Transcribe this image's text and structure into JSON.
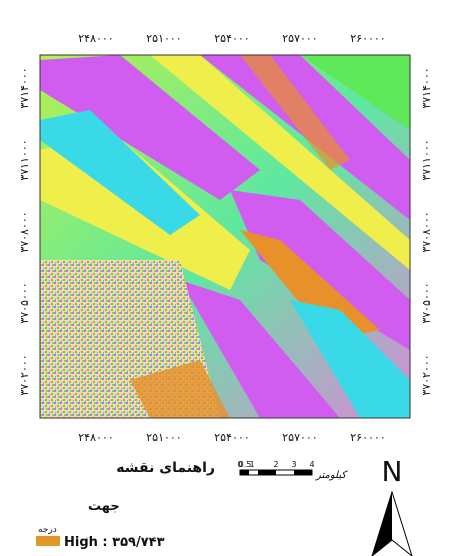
{
  "map": {
    "x_labels": [
      "۲۴۸۰۰۰",
      "۲۵۱۰۰۰",
      "۲۵۴۰۰۰",
      "۲۵۷۰۰۰",
      "۲۶۰۰۰۰"
    ],
    "y_labels": [
      "۳۷۱۴۰۰۰",
      "۳۷۱۱۰۰۰",
      "۳۷۰۸۰۰۰",
      "۳۷۰۵۰۰۰",
      "۳۷۰۲۰۰۰"
    ]
  },
  "legend": {
    "title": "راهنمای نقشه",
    "layer": "جهت",
    "unit": "درجه",
    "high": "High : ۳۵۹/۷۴۳"
  },
  "scale_bar": {
    "labels": [
      "0",
      "0.5",
      "1",
      "2",
      "3",
      "4"
    ],
    "unit": "کیلومتر"
  },
  "north": "N"
}
